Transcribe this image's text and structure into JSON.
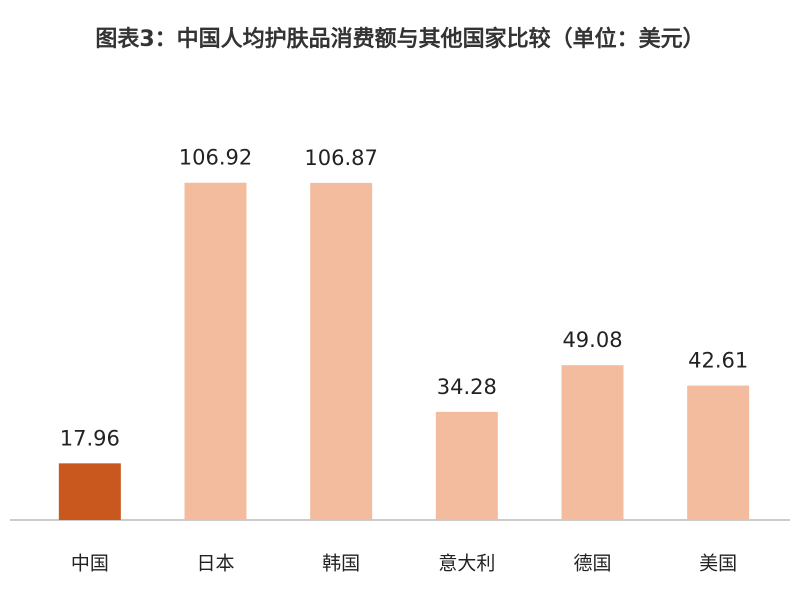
{
  "chart_data": {
    "type": "bar",
    "title": "图表3：中国人均护肤品消费额与其他国家比较（单位：美元）",
    "categories": [
      "中国",
      "日本",
      "韩国",
      "意大利",
      "德国",
      "美国"
    ],
    "values": [
      17.96,
      106.92,
      106.87,
      34.28,
      49.08,
      42.61
    ],
    "colors": [
      "#c9581f",
      "#f3bc9e",
      "#f3bc9e",
      "#f3bc9e",
      "#f3bc9e",
      "#f3bc9e"
    ],
    "ylim": [
      0,
      110
    ],
    "grid": false
  }
}
